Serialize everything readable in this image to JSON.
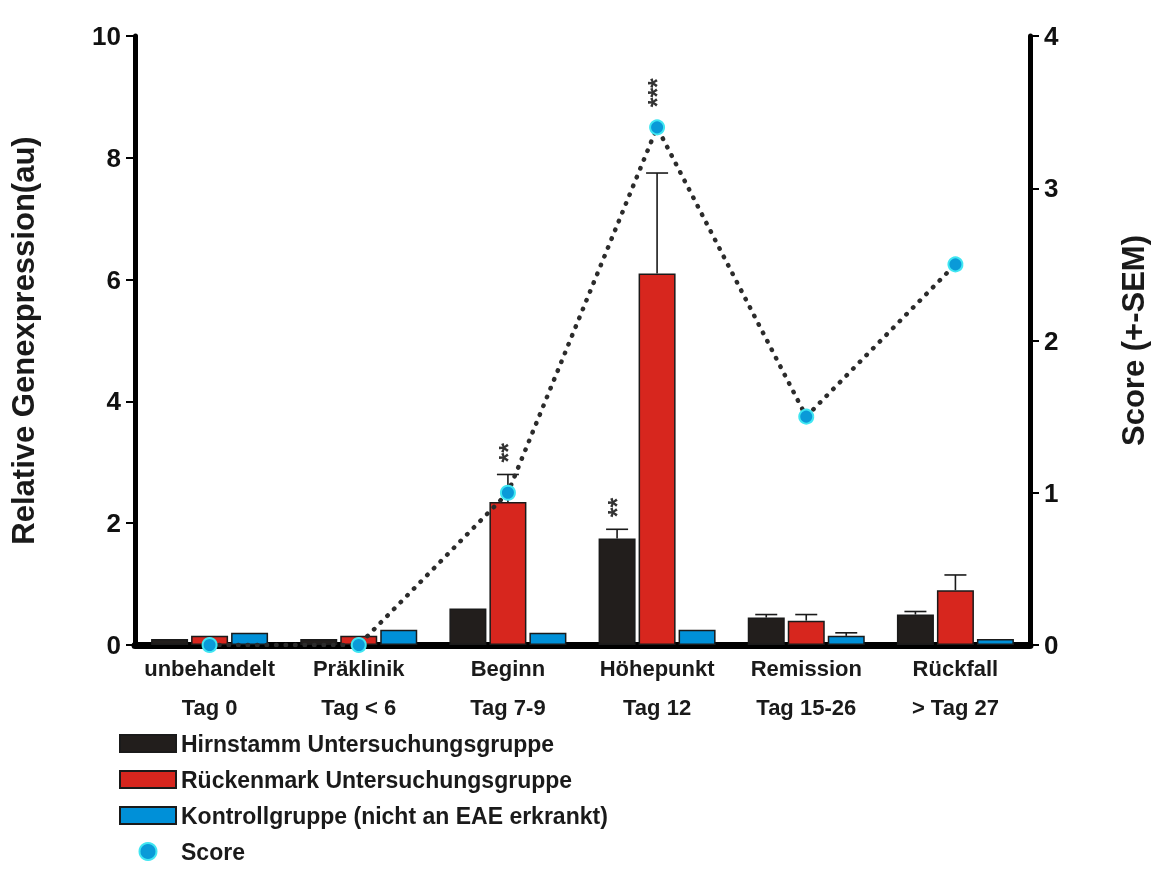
{
  "chart_data": {
    "type": "bar",
    "ylabel": "Relative Genexpression(au)",
    "y2label": "Score (+-SEM)",
    "categories": [
      "unbehandelt\nTag 0",
      "Präklinik\nTag < 6",
      "Beginn\nTag 7-9",
      "Höhepunkt\nTag 12",
      "Remission\nTag 15-26",
      "Rückfall\n> Tag 27"
    ],
    "series": [
      {
        "name": "Hirnstamm Untersuchungsgruppe",
        "color": "#221e1c",
        "values": [
          0.1,
          0.1,
          0.6,
          1.75,
          0.45,
          0.5
        ],
        "errors": [
          null,
          null,
          null,
          [
            1.75,
            1.9
          ],
          [
            0.45,
            0.5
          ],
          [
            0.5,
            0.55
          ]
        ]
      },
      {
        "name": "Rückenmark Untersuchungsgruppe",
        "color": "#d7261e",
        "values": [
          0.15,
          0.15,
          2.35,
          6.1,
          0.4,
          0.9
        ],
        "errors": [
          null,
          null,
          [
            2.35,
            2.8
          ],
          [
            6.1,
            7.75
          ],
          [
            0.4,
            0.5
          ],
          [
            0.9,
            1.15
          ]
        ]
      },
      {
        "name": "Kontrollgruppe (nicht an EAE erkrankt)",
        "color": "#0090d8",
        "values": [
          0.2,
          0.25,
          0.2,
          0.25,
          0.15,
          0.1
        ],
        "errors": [
          null,
          null,
          null,
          null,
          [
            0.15,
            0.2
          ],
          null
        ]
      },
      {
        "name": "Score",
        "type": "line",
        "axis": "y2",
        "color": "#0a9ad8",
        "marker": "circle",
        "line_style": "dotted",
        "values": [
          0,
          0,
          1,
          3.4,
          1.5,
          2.5
        ]
      }
    ],
    "ylim": [
      0,
      10
    ],
    "yticks": [
      0,
      2,
      4,
      6,
      8,
      10
    ],
    "y2lim": [
      0,
      4
    ],
    "y2ticks": [
      0,
      1,
      2,
      3,
      4
    ],
    "annotations": [
      {
        "text": "**",
        "x": "Beginn\nTag 7-9",
        "y": 2.35
      },
      "**",
      "***"
    ],
    "grid": false,
    "legend": "bottom left"
  }
}
